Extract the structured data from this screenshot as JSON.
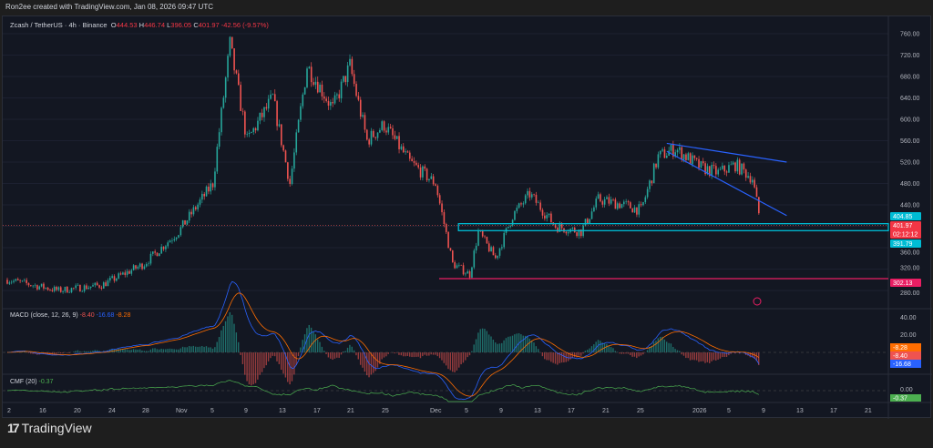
{
  "credit": "Ron2ee created with TradingView.com, Jan 08, 2026 09:47 UTC",
  "symbol": {
    "name": "Zcash / TetherUS · 4h · Binance",
    "open": "444.53",
    "high": "446.74",
    "low": "396.05",
    "close": "401.97",
    "change": "-42.56 (-9.57%)"
  },
  "macd": {
    "label": "MACD (close, 12, 26, 9)",
    "hist": "-8.40",
    "macd": "-16.68",
    "signal": "-8.28"
  },
  "cmf": {
    "label": "CMF (20)",
    "value": "-0.37"
  },
  "price_axis": [
    "760.00",
    "720.00",
    "680.00",
    "640.00",
    "600.00",
    "560.00",
    "520.00",
    "480.00",
    "440.00",
    "360.00",
    "320.00",
    "280.00"
  ],
  "price_labels": {
    "zone_top": "404.85",
    "last": "401.97",
    "countdown": "02:12:12",
    "zone_bottom": "391.79",
    "support": "302.13"
  },
  "macd_axis": [
    "40.00",
    "20.00"
  ],
  "cmf_axis": [
    "0.00"
  ],
  "time_axis": [
    "2",
    "16",
    "20",
    "24",
    "28",
    "Nov",
    "5",
    "9",
    "13",
    "17",
    "21",
    "25",
    "Dec",
    "5",
    "9",
    "13",
    "17",
    "21",
    "25",
    "2026",
    "5",
    "9",
    "13",
    "17",
    "21"
  ],
  "footer": {
    "brand": "TradingView"
  },
  "colors": {
    "up": "#26a69a",
    "down": "#ef5350",
    "zone": "#00bcd4",
    "support": "#e91e63",
    "trend": "#2962ff",
    "macd": "#2962ff",
    "signal": "#ff6d00",
    "cmf": "#4caf50"
  },
  "chart_data": {
    "type": "candlestick",
    "x_unit": "date",
    "y_unit": "USDT",
    "ylim": [
      260,
      780
    ],
    "close_path": [
      [
        "2025-10-12",
        300
      ],
      [
        "2025-10-18",
        280
      ],
      [
        "2025-10-23",
        290
      ],
      [
        "2025-10-28",
        330
      ],
      [
        "2025-11-01",
        390
      ],
      [
        "2025-11-05",
        480
      ],
      [
        "2025-11-07",
        740
      ],
      [
        "2025-11-09",
        560
      ],
      [
        "2025-11-12",
        640
      ],
      [
        "2025-11-14",
        480
      ],
      [
        "2025-11-16",
        700
      ],
      [
        "2025-11-19",
        620
      ],
      [
        "2025-11-21",
        700
      ],
      [
        "2025-11-23",
        560
      ],
      [
        "2025-11-25",
        590
      ],
      [
        "2025-11-28",
        520
      ],
      [
        "2025-12-01",
        480
      ],
      [
        "2025-12-03",
        330
      ],
      [
        "2025-12-05",
        310
      ],
      [
        "2025-12-06",
        390
      ],
      [
        "2025-12-08",
        340
      ],
      [
        "2025-12-10",
        420
      ],
      [
        "2025-12-12",
        460
      ],
      [
        "2025-12-15",
        400
      ],
      [
        "2025-12-18",
        390
      ],
      [
        "2025-12-20",
        450
      ],
      [
        "2025-12-23",
        440
      ],
      [
        "2025-12-25",
        430
      ],
      [
        "2025-12-27",
        530
      ],
      [
        "2025-12-29",
        545
      ],
      [
        "2026-01-01",
        510
      ],
      [
        "2026-01-03",
        500
      ],
      [
        "2026-01-05",
        515
      ],
      [
        "2026-01-07",
        490
      ],
      [
        "2026-01-08",
        402
      ]
    ],
    "zone": [
      391.79,
      404.85
    ],
    "support": 302.13,
    "trendlines": [
      {
        "from": [
          "2025-12-28",
          555
        ],
        "to": [
          "2026-01-11",
          520
        ]
      },
      {
        "from": [
          "2025-12-28",
          540
        ],
        "to": [
          "2026-01-11",
          420
        ]
      }
    ]
  }
}
